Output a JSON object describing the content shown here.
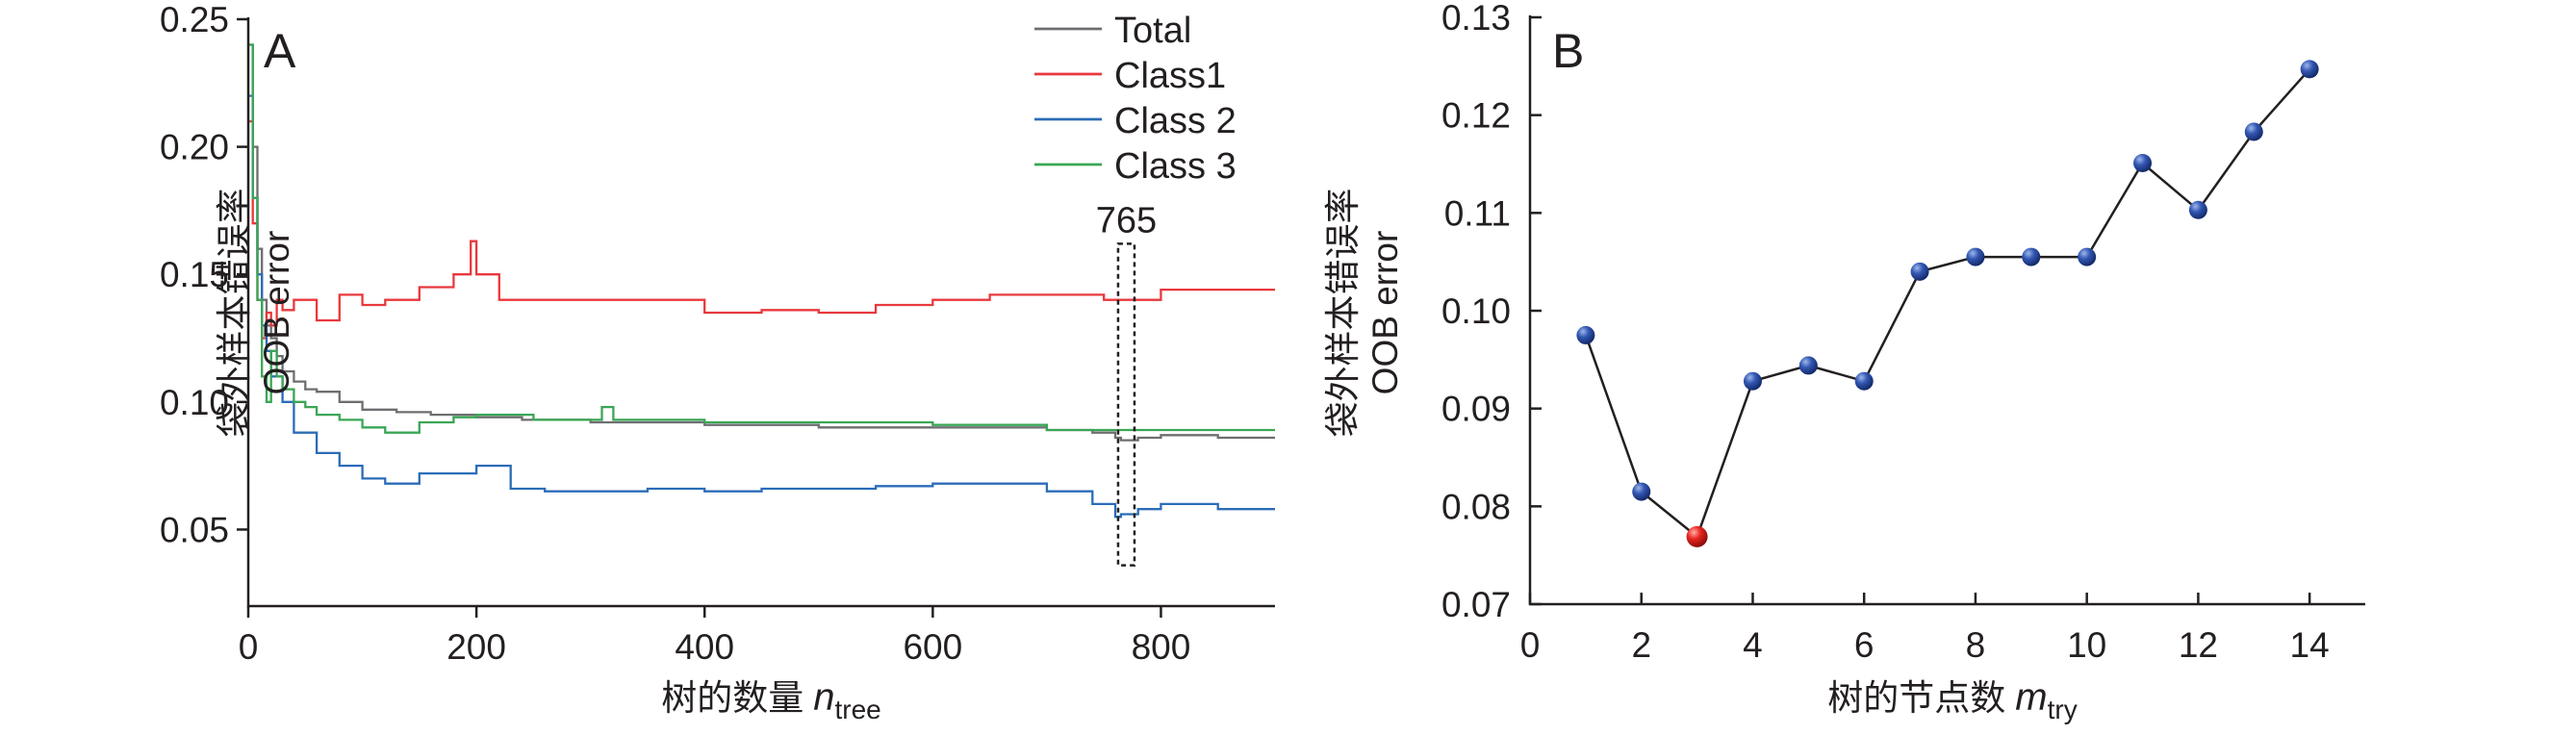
{
  "chart_data": [
    {
      "panel": "A",
      "type": "line",
      "xlabel": "树的数量",
      "xlabel_var": "n",
      "xlabel_sub": "tree",
      "ylabel_cn": "袋外样本错误率",
      "ylabel_en": "OOB error",
      "xlim": [
        0,
        900
      ],
      "ylim": [
        0.02,
        0.25
      ],
      "xticks": [
        0,
        200,
        400,
        600,
        800
      ],
      "xtick_labels": [
        "0",
        "200",
        "400",
        "600",
        "800"
      ],
      "yticks": [
        0.05,
        0.1,
        0.15,
        0.2,
        0.25
      ],
      "ytick_labels": [
        "0.05",
        "0.10",
        "0.15",
        "0.20",
        "0.25"
      ],
      "legend_position": "top-right",
      "annotation": {
        "text": "765",
        "x": 765,
        "y_range": [
          0.036,
          0.162
        ]
      },
      "series": [
        {
          "name": "Total",
          "color": "#6d6e71",
          "x": [
            1,
            4,
            8,
            12,
            16,
            20,
            25,
            30,
            40,
            50,
            60,
            80,
            100,
            130,
            160,
            200,
            240,
            300,
            350,
            400,
            450,
            500,
            550,
            600,
            650,
            700,
            740,
            760,
            765,
            780,
            800,
            850,
            900
          ],
          "y": [
            0.24,
            0.2,
            0.16,
            0.14,
            0.13,
            0.125,
            0.118,
            0.112,
            0.108,
            0.105,
            0.104,
            0.1,
            0.097,
            0.096,
            0.095,
            0.094,
            0.093,
            0.092,
            0.092,
            0.091,
            0.091,
            0.09,
            0.09,
            0.09,
            0.09,
            0.089,
            0.088,
            0.086,
            0.085,
            0.086,
            0.087,
            0.086,
            0.086
          ]
        },
        {
          "name": "Class1",
          "color": "#e8383d",
          "x": [
            1,
            4,
            8,
            12,
            16,
            20,
            25,
            30,
            40,
            60,
            80,
            100,
            120,
            150,
            180,
            195,
            200,
            220,
            250,
            300,
            350,
            400,
            450,
            500,
            550,
            600,
            650,
            700,
            750,
            765,
            800,
            850,
            900
          ],
          "y": [
            0.21,
            0.17,
            0.14,
            0.125,
            0.135,
            0.13,
            0.14,
            0.136,
            0.14,
            0.132,
            0.142,
            0.138,
            0.14,
            0.145,
            0.15,
            0.163,
            0.15,
            0.14,
            0.14,
            0.14,
            0.14,
            0.135,
            0.136,
            0.135,
            0.138,
            0.14,
            0.142,
            0.142,
            0.14,
            0.14,
            0.144,
            0.144,
            0.144
          ]
        },
        {
          "name": "Class 2",
          "color": "#2b6cb8",
          "x": [
            1,
            4,
            8,
            12,
            16,
            20,
            30,
            40,
            60,
            80,
            100,
            120,
            150,
            200,
            230,
            260,
            300,
            350,
            400,
            450,
            500,
            550,
            600,
            650,
            700,
            740,
            760,
            765,
            780,
            800,
            850,
            900
          ],
          "y": [
            0.22,
            0.18,
            0.15,
            0.13,
            0.12,
            0.11,
            0.1,
            0.088,
            0.08,
            0.075,
            0.07,
            0.068,
            0.072,
            0.075,
            0.066,
            0.065,
            0.065,
            0.066,
            0.065,
            0.066,
            0.066,
            0.067,
            0.068,
            0.068,
            0.065,
            0.06,
            0.055,
            0.056,
            0.058,
            0.06,
            0.058,
            0.058
          ]
        },
        {
          "name": "Class 3",
          "color": "#3aa655",
          "x": [
            1,
            4,
            8,
            12,
            16,
            20,
            25,
            30,
            40,
            50,
            60,
            80,
            100,
            120,
            150,
            180,
            200,
            250,
            300,
            310,
            320,
            350,
            400,
            450,
            500,
            550,
            600,
            650,
            700,
            750,
            800,
            850,
            900
          ],
          "y": [
            0.24,
            0.18,
            0.14,
            0.11,
            0.1,
            0.12,
            0.11,
            0.105,
            0.1,
            0.098,
            0.095,
            0.093,
            0.09,
            0.088,
            0.092,
            0.094,
            0.095,
            0.093,
            0.093,
            0.098,
            0.093,
            0.093,
            0.092,
            0.092,
            0.092,
            0.092,
            0.091,
            0.091,
            0.089,
            0.089,
            0.089,
            0.089,
            0.089
          ]
        }
      ]
    },
    {
      "panel": "B",
      "type": "line",
      "xlabel": "树的节点数",
      "xlabel_var": "m",
      "xlabel_sub": "try",
      "ylabel_cn": "袋外样本错误率",
      "ylabel_en": "OOB error",
      "xlim": [
        0,
        15
      ],
      "ylim": [
        0.07,
        0.13
      ],
      "xticks": [
        0,
        2,
        4,
        6,
        8,
        10,
        12,
        14
      ],
      "xtick_labels": [
        "0",
        "2",
        "4",
        "6",
        "8",
        "10",
        "12",
        "14"
      ],
      "yticks": [
        0.07,
        0.08,
        0.09,
        0.1,
        0.11,
        0.12,
        0.13
      ],
      "ytick_labels": [
        "0.07",
        "0.08",
        "0.09",
        "0.10",
        "0.11",
        "0.12",
        "0.13"
      ],
      "series": [
        {
          "x": [
            1,
            2,
            3,
            4,
            5,
            6,
            7,
            8,
            9,
            10,
            11,
            12,
            13,
            14
          ],
          "y": [
            0.0975,
            0.0815,
            0.0769,
            0.0928,
            0.0944,
            0.0928,
            0.104,
            0.1055,
            0.1055,
            0.1055,
            0.1151,
            0.1103,
            0.1183,
            0.1247
          ],
          "color": "#2a4fa8",
          "highlight_index": 2,
          "highlight_color": "#e8251f"
        }
      ]
    }
  ]
}
